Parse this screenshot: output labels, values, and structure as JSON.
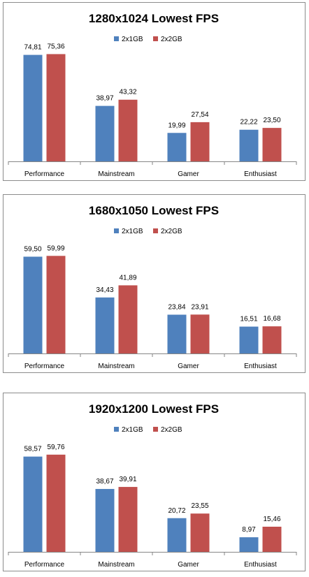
{
  "chart_data": [
    {
      "type": "bar",
      "title": "1280x1024 Lowest FPS",
      "categories": [
        "Performance",
        "Mainstream",
        "Gamer",
        "Enthusiast"
      ],
      "series": [
        {
          "name": "2x1GB",
          "values": [
            74.81,
            38.97,
            19.99,
            22.22
          ],
          "labels": [
            "74,81",
            "38,97",
            "19,99",
            "22,22"
          ],
          "color": "#4f81bd"
        },
        {
          "name": "2x2GB",
          "values": [
            75.36,
            43.32,
            27.54,
            23.5
          ],
          "labels": [
            "75,36",
            "43,32",
            "27,54",
            "23,50"
          ],
          "color": "#c0504d"
        }
      ],
      "ylim": [
        0,
        80
      ],
      "grid": false,
      "legend": "top-center"
    },
    {
      "type": "bar",
      "title": "1680x1050 Lowest FPS",
      "categories": [
        "Performance",
        "Mainstream",
        "Gamer",
        "Enthusiast"
      ],
      "series": [
        {
          "name": "2x1GB",
          "values": [
            59.5,
            34.43,
            23.84,
            16.51
          ],
          "labels": [
            "59,50",
            "34,43",
            "23,84",
            "16,51"
          ],
          "color": "#4f81bd"
        },
        {
          "name": "2x2GB",
          "values": [
            59.99,
            41.89,
            23.91,
            16.68
          ],
          "labels": [
            "59,99",
            "41,89",
            "23,91",
            "16,68"
          ],
          "color": "#c0504d"
        }
      ],
      "ylim": [
        0,
        70
      ],
      "grid": false,
      "legend": "top-center"
    },
    {
      "type": "bar",
      "title": "1920x1200 Lowest FPS",
      "categories": [
        "Performance",
        "Mainstream",
        "Gamer",
        "Enthusiast"
      ],
      "series": [
        {
          "name": "2x1GB",
          "values": [
            58.57,
            38.67,
            20.72,
            8.97
          ],
          "labels": [
            "58,57",
            "38,67",
            "20,72",
            "8,97"
          ],
          "color": "#4f81bd"
        },
        {
          "name": "2x2GB",
          "values": [
            59.76,
            39.91,
            23.55,
            15.46
          ],
          "labels": [
            "59,76",
            "39,91",
            "23,55",
            "15,46"
          ],
          "color": "#c0504d"
        }
      ],
      "ylim": [
        0,
        70
      ],
      "grid": false,
      "legend": "top-center"
    }
  ]
}
